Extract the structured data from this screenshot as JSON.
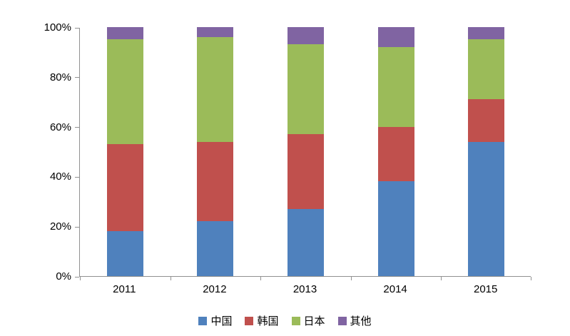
{
  "chart_data": {
    "type": "bar",
    "variant": "stacked-100-percent",
    "title": "",
    "xlabel": "",
    "ylabel": "",
    "categories": [
      "2011",
      "2012",
      "2013",
      "2014",
      "2015"
    ],
    "series": [
      {
        "name": "中国",
        "color": "#4F81BD",
        "values": [
          18,
          22,
          27,
          38,
          54
        ]
      },
      {
        "name": "韩国",
        "color": "#C0504D",
        "values": [
          35,
          32,
          30,
          22,
          17
        ]
      },
      {
        "name": "日本",
        "color": "#9BBB59",
        "values": [
          42,
          42,
          36,
          32,
          24
        ]
      },
      {
        "name": "其他",
        "color": "#8064A2",
        "values": [
          5,
          4,
          7,
          8,
          5
        ]
      }
    ],
    "y_axis": {
      "min": 0,
      "max": 100,
      "tick_step": 20,
      "tick_labels": [
        "0%",
        "20%",
        "40%",
        "60%",
        "80%",
        "100%"
      ]
    },
    "legend_position": "bottom",
    "grid": false,
    "axis_color": "#919191",
    "text_color": "#000000",
    "background_color": "#FFFFFF"
  }
}
